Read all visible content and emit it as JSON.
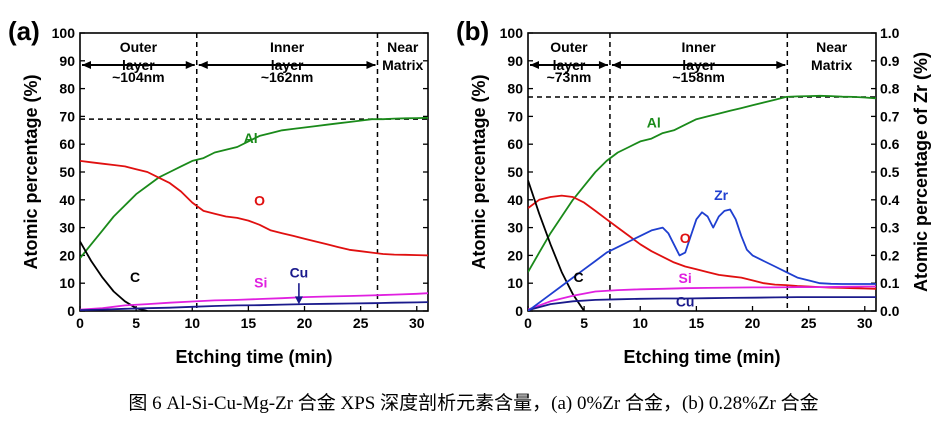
{
  "caption": "图 6 Al-Si-Cu-Mg-Zr 合金 XPS 深度剖析元素含量，(a) 0%Zr 合金，(b) 0.28%Zr 合金",
  "colors": {
    "Al": "#1a8a1a",
    "O": "#e01010",
    "C": "#000000",
    "Si": "#e020e0",
    "Cu": "#1a1a8c",
    "Zr": "#1f3fd0"
  },
  "chart_data": [
    {
      "type": "line",
      "panel_label": "(a)",
      "xlabel": "Etching time (min)",
      "ylabel": "Atomic percentage (%)",
      "xlim": [
        0,
        31
      ],
      "ylim": [
        0,
        100
      ],
      "xticks": [
        0,
        5,
        10,
        15,
        20,
        25,
        30
      ],
      "yticks": [
        0,
        10,
        20,
        30,
        40,
        50,
        60,
        70,
        80,
        90,
        100
      ],
      "regions": [
        {
          "label_lines": [
            "Outer",
            "layer"
          ],
          "from": 0,
          "to": 10.4,
          "thickness": "~104nm"
        },
        {
          "label_lines": [
            "Inner",
            "layer"
          ],
          "from": 10.4,
          "to": 26.5,
          "thickness": "~162nm"
        },
        {
          "label_lines": [
            "Near",
            "Matrix"
          ],
          "from": 26.5,
          "to": 31,
          "thickness": ""
        }
      ],
      "boundaries": [
        10.4,
        26.5
      ],
      "reference_line": 69,
      "series": [
        {
          "name": "Al",
          "color": "#1a8a1a",
          "x": [
            0,
            1,
            2,
            3,
            4,
            5,
            6,
            7,
            8,
            9,
            10,
            11,
            12,
            13,
            14,
            15,
            16,
            17,
            18,
            19,
            20,
            21,
            22,
            23,
            24,
            25,
            26,
            27,
            28,
            29,
            30,
            31
          ],
          "y": [
            19,
            24,
            29,
            34,
            38,
            42,
            45,
            48,
            50,
            52,
            54,
            55,
            57,
            58,
            59,
            61,
            63,
            64,
            65,
            65.5,
            66,
            66.5,
            67,
            67.5,
            68,
            68.5,
            69,
            69,
            69.2,
            69.3,
            69.4,
            69.5
          ]
        },
        {
          "name": "O",
          "color": "#e01010",
          "x": [
            0,
            1,
            2,
            3,
            4,
            5,
            6,
            7,
            8,
            9,
            10,
            11,
            12,
            13,
            14,
            15,
            16,
            17,
            18,
            19,
            20,
            21,
            22,
            23,
            24,
            25,
            26,
            27,
            28,
            29,
            30,
            31
          ],
          "y": [
            54,
            53.5,
            53,
            52.5,
            52,
            51,
            50,
            48,
            46,
            43,
            39,
            36,
            35,
            34,
            33.5,
            32.5,
            31,
            29,
            28,
            27,
            26,
            25,
            24,
            23,
            22,
            21.5,
            21,
            20.5,
            20.3,
            20.2,
            20.1,
            20
          ]
        },
        {
          "name": "C",
          "color": "#000000",
          "x": [
            0,
            1,
            2,
            3,
            4,
            5,
            6
          ],
          "y": [
            25,
            18,
            12,
            7,
            3.5,
            1,
            0
          ]
        },
        {
          "name": "Si",
          "color": "#e020e0",
          "x": [
            0,
            2,
            4,
            6,
            8,
            10,
            12,
            14,
            16,
            18,
            20,
            22,
            24,
            26,
            28,
            30,
            31
          ],
          "y": [
            0.5,
            1,
            2,
            2.5,
            3,
            3.4,
            3.8,
            4,
            4.3,
            4.6,
            5,
            5.2,
            5.4,
            5.6,
            5.9,
            6.2,
            6.4
          ]
        },
        {
          "name": "Cu",
          "color": "#1a1a8c",
          "x": [
            0,
            2,
            4,
            6,
            8,
            10,
            12,
            14,
            16,
            18,
            20,
            22,
            24,
            26,
            28,
            30,
            31
          ],
          "y": [
            0.3,
            0.5,
            0.8,
            1,
            1.2,
            1.5,
            1.8,
            2,
            2.1,
            2.3,
            2.5,
            2.6,
            2.7,
            2.8,
            3,
            3.1,
            3.2
          ]
        }
      ],
      "annotations": [
        {
          "text": "Al",
          "series": "Al",
          "x": 15.2,
          "y": 60.5
        },
        {
          "text": "O",
          "series": "O",
          "x": 16,
          "y": 38
        },
        {
          "text": "C",
          "series": "C",
          "x": 4.9,
          "y": 10.5
        },
        {
          "text": "Si",
          "series": "Si",
          "x": 16.1,
          "y": 8.5
        },
        {
          "text": "Cu",
          "series": "Cu",
          "x": 19.5,
          "y": 12
        }
      ],
      "arrow_annotation": {
        "series": "Cu",
        "x": 19.5,
        "y_from": 10,
        "y_to": 2.4
      }
    },
    {
      "type": "line",
      "panel_label": "(b)",
      "xlabel": "Etching time (min)",
      "ylabel": "Atomic percentage (%)",
      "y2label": "Atomic percentage of Zr (%)",
      "xlim": [
        0,
        31
      ],
      "ylim": [
        0,
        100
      ],
      "y2lim": [
        0,
        1.0
      ],
      "xticks": [
        0,
        5,
        10,
        15,
        20,
        25,
        30
      ],
      "yticks": [
        0,
        10,
        20,
        30,
        40,
        50,
        60,
        70,
        80,
        90,
        100
      ],
      "y2ticks": [
        0.0,
        0.1,
        0.2,
        0.3,
        0.4,
        0.5,
        0.6,
        0.7,
        0.8,
        0.9,
        1.0
      ],
      "regions": [
        {
          "label_lines": [
            "Outer",
            "layer"
          ],
          "from": 0,
          "to": 7.3,
          "thickness": "~73nm"
        },
        {
          "label_lines": [
            "Inner",
            "layer"
          ],
          "from": 7.3,
          "to": 23.1,
          "thickness": "~158nm"
        },
        {
          "label_lines": [
            "Near",
            "Matrix"
          ],
          "from": 23.1,
          "to": 31,
          "thickness": ""
        }
      ],
      "boundaries": [
        7.3,
        23.1
      ],
      "reference_line": 77,
      "series": [
        {
          "name": "Al",
          "color": "#1a8a1a",
          "axis": "left",
          "x": [
            0,
            1,
            2,
            3,
            4,
            5,
            6,
            7,
            8,
            9,
            10,
            11,
            12,
            13,
            14,
            15,
            16,
            17,
            18,
            19,
            20,
            21,
            22,
            23,
            24,
            25,
            26,
            27,
            28,
            29,
            30,
            31
          ],
          "y": [
            14,
            21,
            28,
            34,
            40,
            45,
            50,
            54,
            57,
            59,
            61,
            62,
            64,
            65,
            67,
            69,
            70,
            71,
            72,
            73,
            74,
            75,
            76,
            77,
            77.2,
            77.3,
            77.4,
            77.3,
            77.1,
            77,
            76.8,
            76.5
          ]
        },
        {
          "name": "O",
          "color": "#e01010",
          "axis": "left",
          "x": [
            0,
            1,
            2,
            3,
            4,
            5,
            6,
            7,
            8,
            9,
            10,
            11,
            12,
            13,
            14,
            15,
            16,
            17,
            18,
            19,
            20,
            21,
            22,
            23,
            24,
            25,
            26,
            27,
            28,
            29,
            30,
            31
          ],
          "y": [
            37,
            40,
            41,
            41.5,
            41,
            39,
            36,
            33,
            30,
            27,
            24,
            21.5,
            19.5,
            17.5,
            16,
            15,
            14,
            13,
            12.5,
            12,
            11,
            10,
            9.5,
            9.3,
            9,
            8.8,
            8.6,
            8.4,
            8.3,
            8.2,
            8.1,
            8
          ]
        },
        {
          "name": "C",
          "color": "#000000",
          "axis": "left",
          "x": [
            0,
            1,
            2,
            3,
            4,
            5
          ],
          "y": [
            47,
            35,
            24,
            14,
            6,
            0
          ]
        },
        {
          "name": "Si",
          "color": "#e020e0",
          "axis": "left",
          "x": [
            0,
            2,
            4,
            6,
            8,
            10,
            12,
            14,
            16,
            18,
            20,
            22,
            24,
            26,
            28,
            30,
            31
          ],
          "y": [
            0.5,
            3.5,
            5.5,
            7,
            7.5,
            7.8,
            8,
            8.2,
            8.3,
            8.4,
            8.5,
            8.5,
            8.6,
            8.6,
            8.7,
            8.8,
            8.8
          ]
        },
        {
          "name": "Cu",
          "color": "#1a1a8c",
          "axis": "left",
          "x": [
            0,
            2,
            4,
            6,
            8,
            10,
            12,
            14,
            16,
            18,
            20,
            22,
            24,
            26,
            28,
            30,
            31
          ],
          "y": [
            0.3,
            2.5,
            3.5,
            4,
            4.2,
            4.4,
            4.5,
            4.5,
            4.6,
            4.7,
            4.8,
            4.9,
            5,
            5,
            5,
            5,
            5
          ]
        },
        {
          "name": "Zr",
          "color": "#1f3fd0",
          "axis": "right",
          "x": [
            0,
            1,
            2,
            3,
            4,
            5,
            6,
            7,
            8,
            9,
            10,
            11,
            12,
            12.5,
            13,
            13.5,
            14,
            14.5,
            15,
            15.5,
            16,
            16.5,
            17,
            17.5,
            18,
            18.5,
            19,
            19.5,
            20,
            21,
            22,
            23,
            24,
            25,
            26,
            27,
            28,
            29,
            30,
            31
          ],
          "y": [
            0.0,
            0.03,
            0.06,
            0.09,
            0.12,
            0.15,
            0.18,
            0.21,
            0.23,
            0.25,
            0.27,
            0.29,
            0.3,
            0.28,
            0.24,
            0.2,
            0.21,
            0.27,
            0.33,
            0.355,
            0.34,
            0.3,
            0.34,
            0.36,
            0.365,
            0.33,
            0.27,
            0.22,
            0.2,
            0.18,
            0.16,
            0.14,
            0.12,
            0.11,
            0.1,
            0.098,
            0.097,
            0.097,
            0.097,
            0.097
          ]
        }
      ],
      "annotations": [
        {
          "text": "Al",
          "series": "Al",
          "x": 11.2,
          "y": 66
        },
        {
          "text": "O",
          "series": "O",
          "x": 14,
          "y": 24.5
        },
        {
          "text": "C",
          "series": "C",
          "x": 4.5,
          "y": 10.5
        },
        {
          "text": "Si",
          "series": "Si",
          "x": 14,
          "y": 10
        },
        {
          "text": "Cu",
          "series": "Cu",
          "x": 14,
          "y": 1.6
        },
        {
          "text": "Zr",
          "series": "Zr",
          "x": 17.2,
          "y": 40
        }
      ]
    }
  ]
}
